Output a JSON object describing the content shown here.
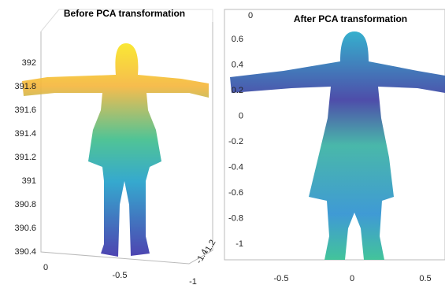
{
  "panels": [
    {
      "title": "Before PCA transformation",
      "yticks": [
        "392",
        "391.8",
        "391.6",
        "391.4",
        "391.2",
        "391",
        "390.8",
        "390.6",
        "390.4"
      ],
      "xticks": [
        "0",
        "-0.5",
        "-1"
      ],
      "zticks": [
        "-1.2",
        "-1.4"
      ]
    },
    {
      "title": "After PCA transformation",
      "corner_label": "0",
      "yticks": [
        "0.6",
        "0.4",
        "0.2",
        "0",
        "-0.2",
        "-0.4",
        "-0.6",
        "-0.8",
        "-1"
      ],
      "xticks": [
        "-0.5",
        "0",
        "0.5"
      ]
    }
  ]
}
